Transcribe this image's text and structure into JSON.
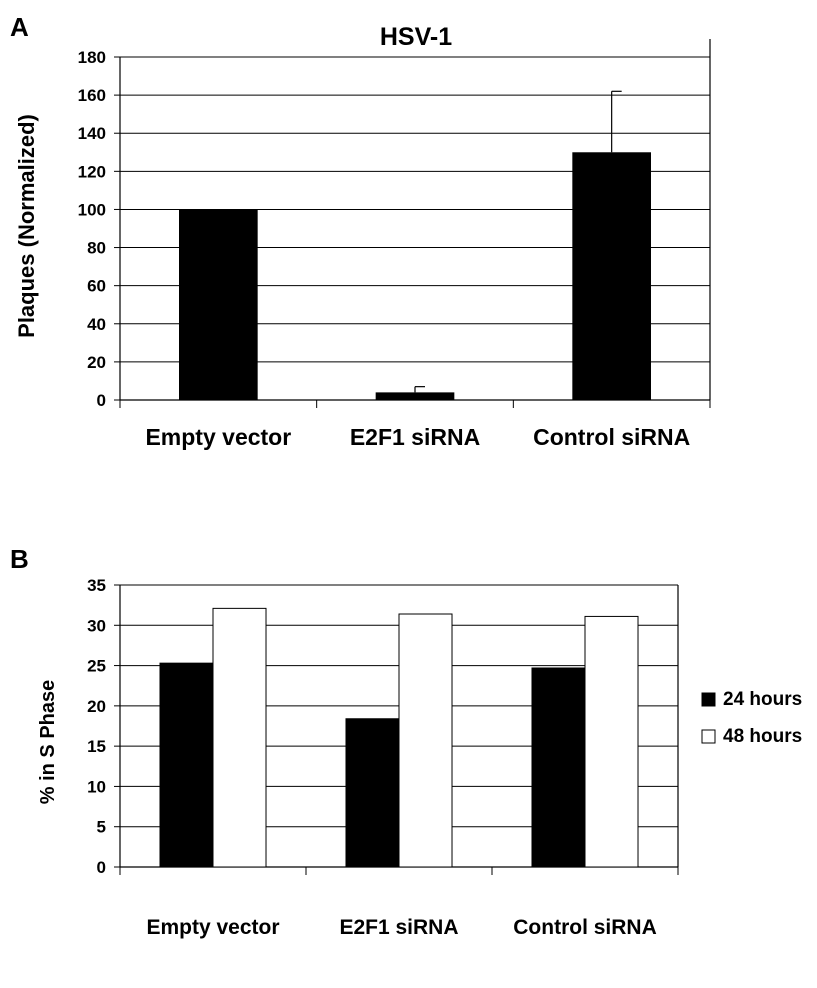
{
  "chart_data": [
    {
      "panel": "A",
      "type": "bar",
      "title": "HSV-1",
      "ylabel": "Plaques (Normalized)",
      "xlabel": "",
      "categories": [
        "Empty vector",
        "E2F1 siRNA",
        "Control siRNA"
      ],
      "values": [
        100,
        4,
        130
      ],
      "error_bars": [
        0,
        3,
        32
      ],
      "ylim": [
        0,
        180
      ],
      "yticks": [
        "0",
        "20",
        "40",
        "60",
        "80",
        "100",
        "120",
        "140",
        "160",
        "180"
      ],
      "grid": true,
      "colors": {
        "bar": "#000000"
      }
    },
    {
      "panel": "B",
      "type": "bar",
      "title": "",
      "ylabel": "% in S Phase",
      "xlabel": "",
      "categories": [
        "Empty vector",
        "E2F1 siRNA",
        "Control siRNA"
      ],
      "series": [
        {
          "name": "24 hours",
          "values": [
            25.3,
            18.4,
            24.7
          ]
        },
        {
          "name": "48 hours",
          "values": [
            32.1,
            31.4,
            31.1
          ]
        }
      ],
      "ylim": [
        0,
        35
      ],
      "yticks": [
        "0",
        "5",
        "10",
        "15",
        "20",
        "25",
        "30",
        "35"
      ],
      "grid": true,
      "legend": "right",
      "colors": {
        "24 hours": "#000000",
        "48 hours": "#ffffff"
      }
    }
  ]
}
